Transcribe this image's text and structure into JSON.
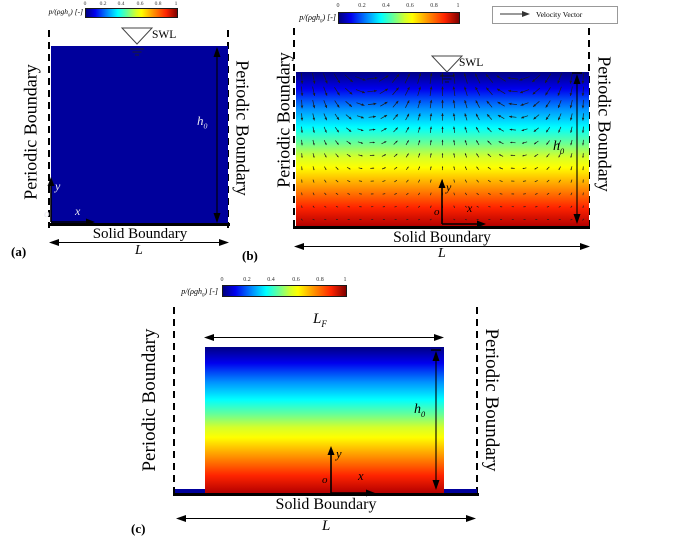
{
  "colorbar": {
    "label_pre": "p/(ρgh",
    "label_sub": "0",
    "label_post": ") [-]",
    "ticks": [
      "0",
      "0.2",
      "0.4",
      "0.6",
      "0.8",
      "1"
    ]
  },
  "legend": {
    "velocity_vector": "Velocity Vector"
  },
  "labels": {
    "periodic_boundary": "Periodic Boundary",
    "solid_boundary": "Solid Boundary",
    "swl": "SWL",
    "domain_length": "L",
    "filament_length_main": "L",
    "filament_length_sub": "F",
    "depth_main": "h",
    "depth_sub": "0",
    "axis_y": "y",
    "axis_x": "x",
    "origin": "o"
  },
  "panel_labels": {
    "a": "(a)",
    "b": "(b)",
    "c": "(c)"
  },
  "colors": {
    "uniform_pressure_fluid": "#00009c",
    "jet_scale_low": "#00007f",
    "jet_scale_high": "#800000",
    "boundary_line": "#000000"
  },
  "velocity_field": {
    "cols": 25,
    "rows": 12
  }
}
